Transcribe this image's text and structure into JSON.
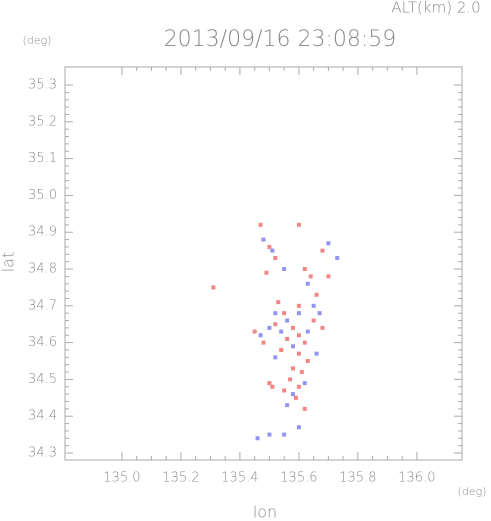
{
  "chart_data": {
    "type": "scatter",
    "title": "2013/09/16 23:08:59",
    "altitude_label": "ALT(km)  2.0",
    "y_unit": "(deg)",
    "x_unit": "(deg)",
    "ylabel": "lat",
    "xlabel": "lon",
    "xlim": [
      134.807,
      136.153
    ],
    "ylim": [
      34.281,
      35.349
    ],
    "xticks": [
      {
        "value": 135.0,
        "label": "135.0"
      },
      135.2,
      135.4,
      135.6,
      135.8,
      {
        "value": 136.0,
        "label": "136.0"
      }
    ],
    "yticks": [
      34.3,
      34.4,
      34.5,
      34.6,
      34.7,
      34.8,
      34.9,
      {
        "value": 35.0,
        "label": "35.0"
      },
      35.1,
      35.2,
      35.3
    ],
    "series": [
      {
        "color": "#f07070",
        "x": [
          135.31,
          135.47,
          135.6,
          135.5,
          135.52,
          135.49,
          135.62,
          135.64,
          135.68,
          135.7,
          135.66,
          135.6,
          135.55,
          135.52,
          135.58,
          135.6,
          135.62,
          135.56,
          135.6,
          135.63,
          135.58,
          135.61,
          135.57,
          135.6,
          135.55,
          135.5,
          135.51,
          135.62,
          135.45,
          135.48,
          135.65,
          135.68,
          135.54,
          135.59,
          135.53
        ],
        "y": [
          34.75,
          34.92,
          34.92,
          34.86,
          34.83,
          34.79,
          34.8,
          34.78,
          34.85,
          34.78,
          34.73,
          34.7,
          34.68,
          34.65,
          34.64,
          34.62,
          34.6,
          34.61,
          34.57,
          34.55,
          34.53,
          34.52,
          34.5,
          34.48,
          34.47,
          34.49,
          34.48,
          34.42,
          34.63,
          34.6,
          34.66,
          34.64,
          34.58,
          34.45,
          34.71
        ]
      },
      {
        "color": "#8080f0",
        "x": [
          135.48,
          135.51,
          135.55,
          135.73,
          135.7,
          135.63,
          135.6,
          135.56,
          135.5,
          135.54,
          135.63,
          135.67,
          135.47,
          135.58,
          135.52,
          135.66,
          135.62,
          135.58,
          135.56,
          135.6,
          135.55,
          135.5,
          135.46,
          135.65,
          135.52
        ],
        "y": [
          34.88,
          34.85,
          34.8,
          34.83,
          34.87,
          34.76,
          34.68,
          34.66,
          34.64,
          34.63,
          34.63,
          34.68,
          34.62,
          34.59,
          34.56,
          34.57,
          34.49,
          34.46,
          34.43,
          34.37,
          34.35,
          34.35,
          34.34,
          34.7,
          34.68
        ]
      }
    ]
  }
}
